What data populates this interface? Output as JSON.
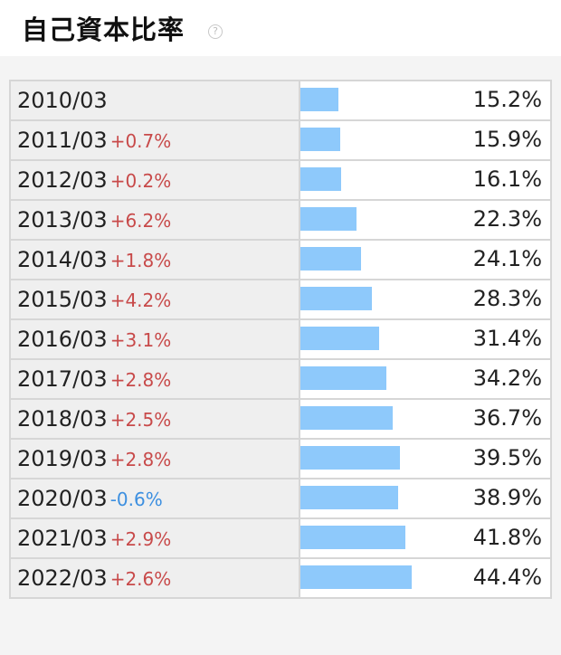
{
  "header": {
    "title": "自己資本比率",
    "help_glyph": "?"
  },
  "colors": {
    "bar": "#8ec9fb",
    "positive_delta": "#c84a4a",
    "negative_delta": "#3c8fe0"
  },
  "chart_data": {
    "type": "bar",
    "title": "自己資本比率",
    "unit": "%",
    "categories": [
      "2010/03",
      "2011/03",
      "2012/03",
      "2013/03",
      "2014/03",
      "2015/03",
      "2016/03",
      "2017/03",
      "2018/03",
      "2019/03",
      "2020/03",
      "2021/03",
      "2022/03"
    ],
    "values": [
      15.2,
      15.9,
      16.1,
      22.3,
      24.1,
      28.3,
      31.4,
      34.2,
      36.7,
      39.5,
      38.9,
      41.8,
      44.4
    ],
    "value_labels": [
      "15.2%",
      "15.9%",
      "16.1%",
      "22.3%",
      "24.1%",
      "28.3%",
      "31.4%",
      "34.2%",
      "36.7%",
      "39.5%",
      "38.9%",
      "41.8%",
      "44.4%"
    ],
    "changes": [
      "",
      "+0.7%",
      "+0.2%",
      "+6.2%",
      "+1.8%",
      "+4.2%",
      "+3.1%",
      "+2.8%",
      "+2.5%",
      "+2.8%",
      "-0.6%",
      "+2.9%",
      "+2.6%"
    ],
    "bar_scale_max": 100
  }
}
